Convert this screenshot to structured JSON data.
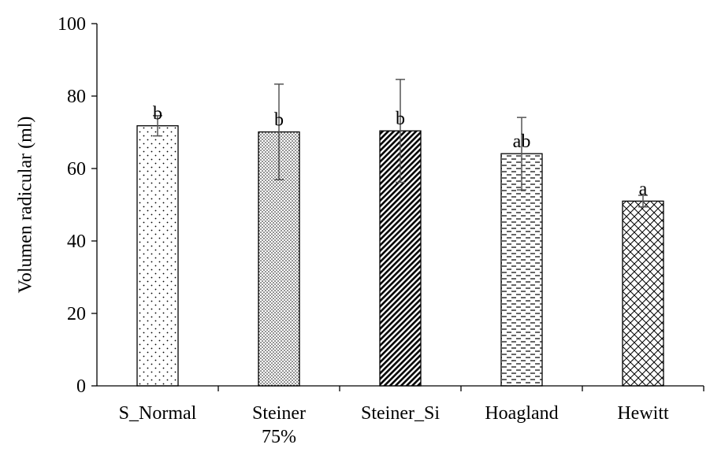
{
  "chart_data": {
    "type": "bar",
    "title": "",
    "xlabel": "",
    "ylabel": "Volumen radicular (ml)",
    "ylim": [
      0,
      100
    ],
    "yticks": [
      0,
      20,
      40,
      60,
      80,
      100
    ],
    "categories": [
      [
        "S_Normal"
      ],
      [
        "Steiner",
        "75%"
      ],
      [
        "Steiner_Si"
      ],
      [
        "Hoagland"
      ],
      [
        "Hewitt"
      ]
    ],
    "values": [
      71.8,
      70.1,
      70.4,
      64.1,
      51.0
    ],
    "errors": [
      2.8,
      13.2,
      14.2,
      10.0,
      1.6
    ],
    "significance": [
      "b",
      "b",
      "b",
      "ab",
      "a"
    ],
    "patterns": [
      "sparse-dots",
      "dense-dots",
      "diagonal-stripes",
      "horizontal-dashes",
      "crosshatch"
    ],
    "grid": false,
    "legend": "none"
  }
}
